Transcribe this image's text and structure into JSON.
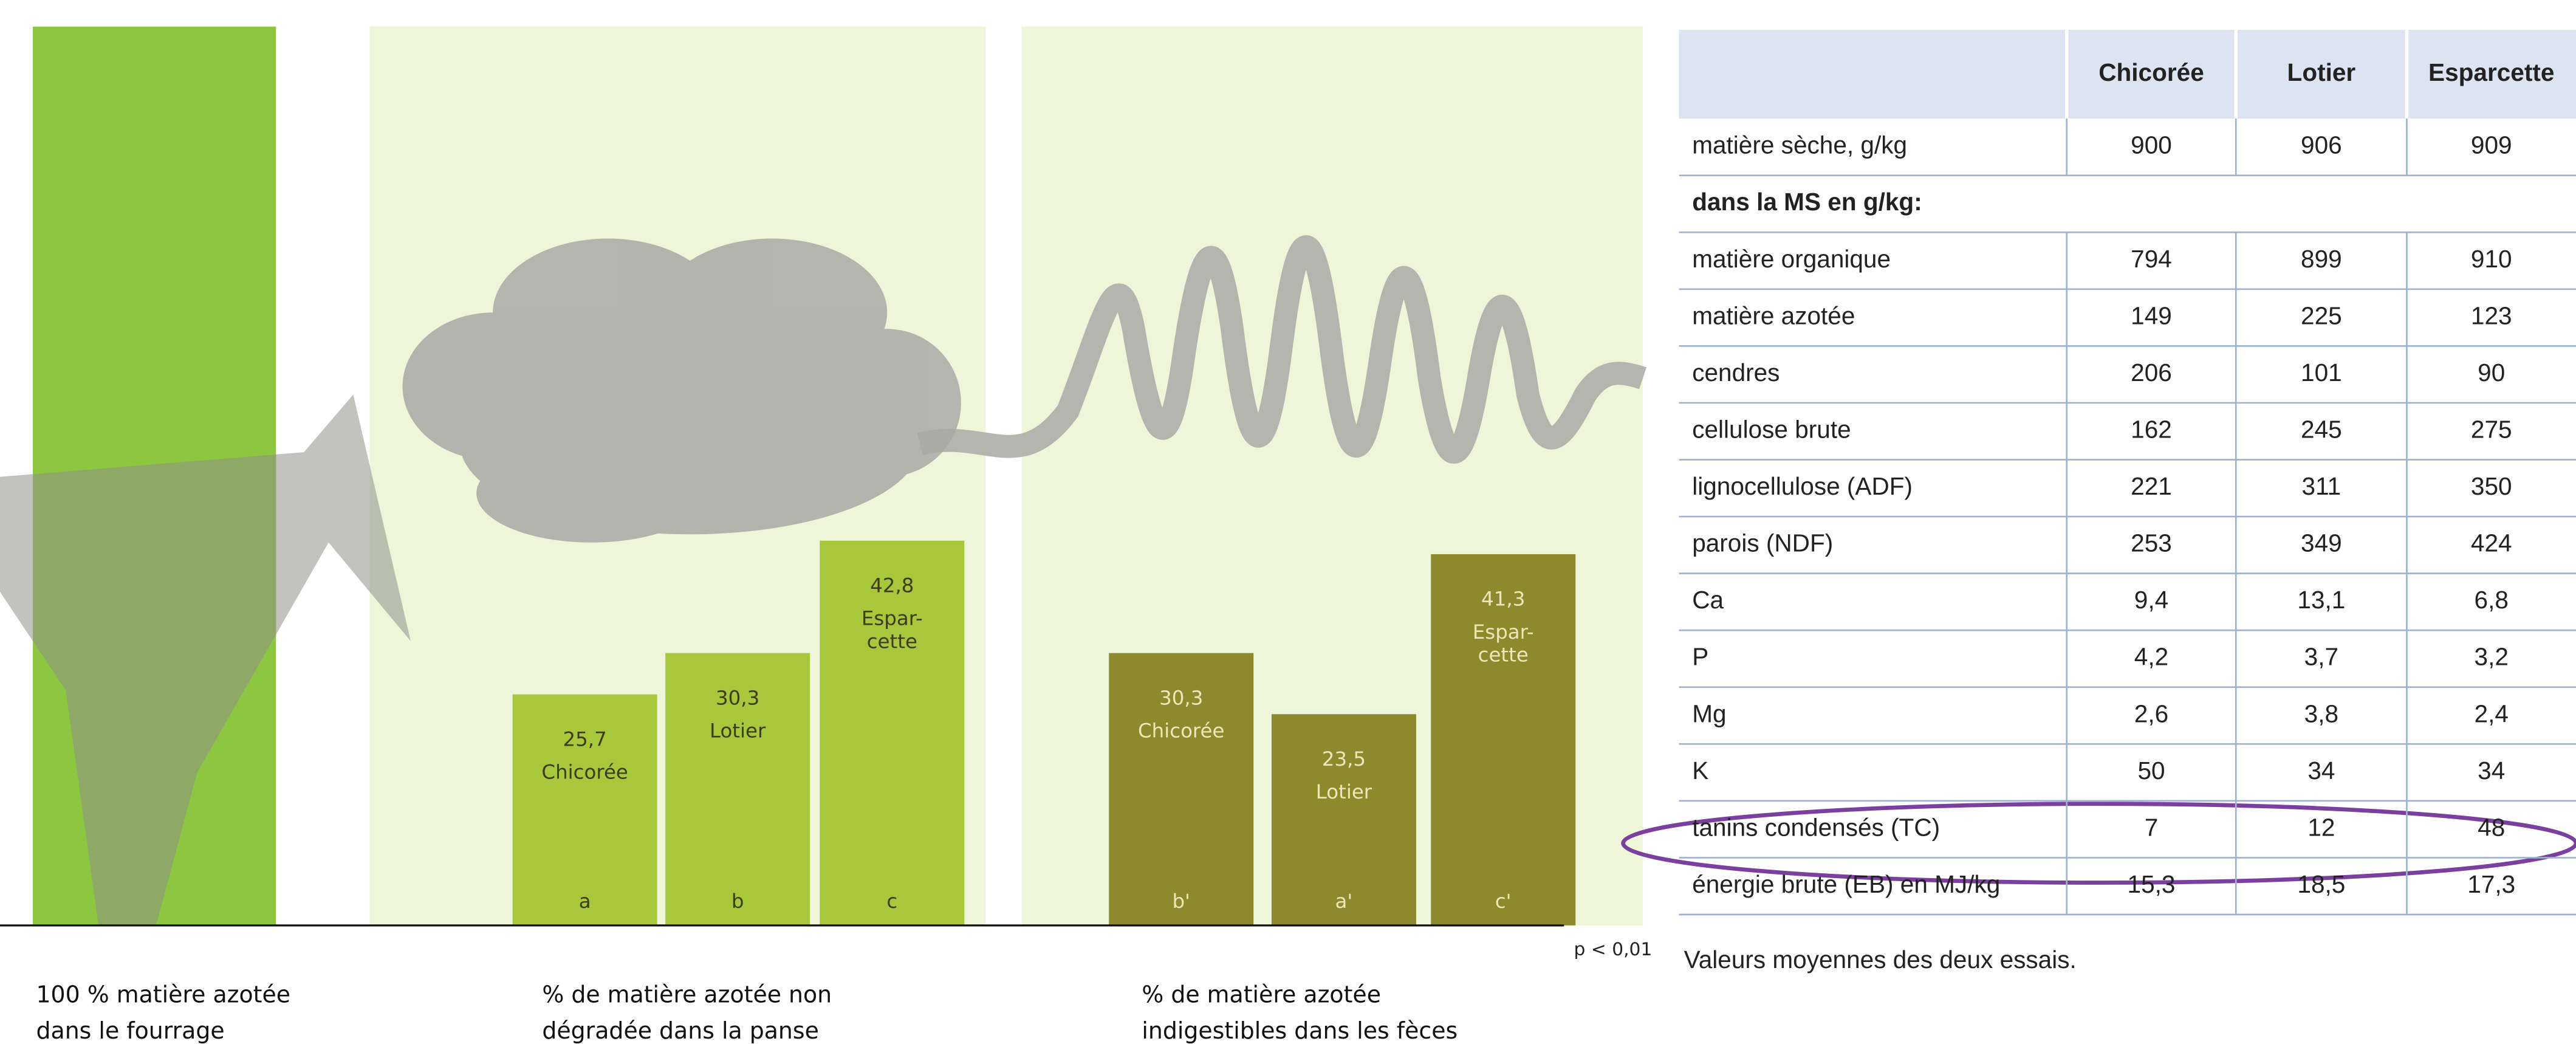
{
  "chart_data": [
    {
      "type": "bar",
      "categories": [
        null
      ],
      "values": [
        100
      ],
      "color": "#8dc63f",
      "caption": [
        "100 % matière azotée",
        "dans le fourrage"
      ]
    },
    {
      "type": "bar",
      "categories": [
        "Chicorée",
        "Lotier",
        "Espar-\ncette"
      ],
      "values": [
        25.7,
        30.3,
        42.8
      ],
      "value_labels": [
        "25,7",
        "30,3",
        "42,8"
      ],
      "groups": [
        "a",
        "b",
        "c"
      ],
      "color": "#a9c73a",
      "caption": [
        "% de matière azotée non",
        "dégradée dans la panse"
      ]
    },
    {
      "type": "bar",
      "categories": [
        "Chicorée",
        "Lotier",
        "Espar-\ncette"
      ],
      "values": [
        30.3,
        23.5,
        41.3
      ],
      "value_labels": [
        "30,3",
        "23,5",
        "41,3"
      ],
      "groups": [
        "b'",
        "a'",
        "c'"
      ],
      "color": "#8c8a2c",
      "caption": [
        "% de matière azotée",
        "indigestibles dans les fèces"
      ]
    }
  ],
  "significance": "p < 0,01",
  "table": {
    "header": [
      "",
      "Chicorée",
      "Lotier",
      "Esparcette"
    ],
    "rows": [
      [
        "matière sèche, g/kg",
        "900",
        "906",
        "909"
      ],
      [
        "dans la MS en g/kg:"
      ],
      [
        "matière organique",
        "794",
        "899",
        "910"
      ],
      [
        "matière azotée",
        "149",
        "225",
        "123"
      ],
      [
        "cendres",
        "206",
        "101",
        "90"
      ],
      [
        "cellulose brute",
        "162",
        "245",
        "275"
      ],
      [
        "lignocellulose (ADF)",
        "221",
        "311",
        "350"
      ],
      [
        "parois (NDF)",
        "253",
        "349",
        "424"
      ],
      [
        "Ca",
        "9,4",
        "13,1",
        "6,8"
      ],
      [
        "P",
        "4,2",
        "3,7",
        "3,2"
      ],
      [
        "Mg",
        "2,6",
        "3,8",
        "2,4"
      ],
      [
        "K",
        "50",
        "34",
        "34"
      ],
      [
        "tanins condensés (TC)",
        "7",
        "12",
        "48"
      ],
      [
        "énergie brute (EB) en MJ/kg",
        "15,3",
        "18,5",
        "17,3"
      ]
    ],
    "note": "Valeurs moyennes des deux essais."
  }
}
